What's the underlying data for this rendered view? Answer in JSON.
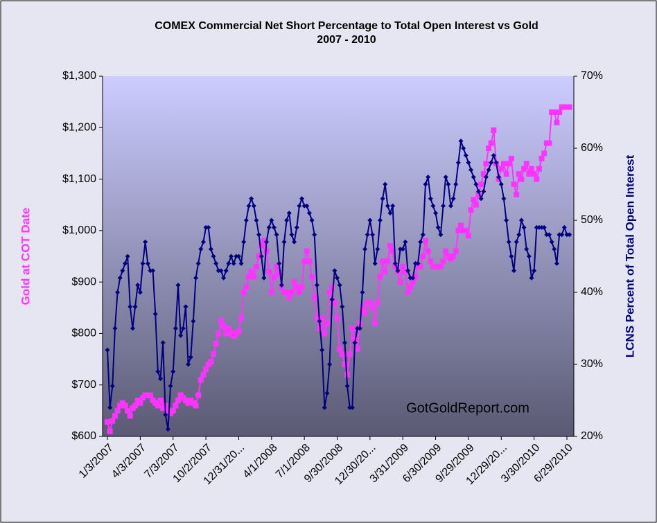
{
  "chart_data": {
    "type": "line",
    "title": "COMEX Commercial Net Short Percentage to Total Open Interest vs Gold",
    "subtitle": "2007 - 2010",
    "ylabel": "Gold at COT Date",
    "y2label": "LCNS Percent of Total Open Interest",
    "annotation": "GotGoldReport.com",
    "categories": [
      "1/3/2007",
      null,
      null,
      null,
      null,
      null,
      null,
      null,
      null,
      null,
      null,
      null,
      null,
      "4/3/2007",
      null,
      null,
      null,
      null,
      null,
      null,
      null,
      null,
      null,
      null,
      null,
      null,
      "7/3/2007",
      null,
      null,
      null,
      null,
      null,
      null,
      null,
      null,
      null,
      null,
      null,
      null,
      "10/2/2007",
      null,
      null,
      null,
      null,
      null,
      null,
      null,
      null,
      null,
      null,
      null,
      null,
      "12/31/20...",
      null,
      null,
      null,
      null,
      null,
      null,
      null,
      null,
      null,
      null,
      null,
      null,
      "4/1/2008",
      null,
      null,
      null,
      null,
      null,
      null,
      null,
      null,
      null,
      null,
      null,
      null,
      "7/1/2008",
      null,
      null,
      null,
      null,
      null,
      null,
      null,
      null,
      null,
      null,
      null,
      null,
      "9/30/2008",
      null,
      null,
      null,
      null,
      null,
      null,
      null,
      null,
      null,
      null,
      null,
      null,
      "12/30/20...",
      null,
      null,
      null,
      null,
      null,
      null,
      null,
      null,
      null,
      null,
      null,
      null,
      "3/31/2009",
      null,
      null,
      null,
      null,
      null,
      null,
      null,
      null,
      null,
      null,
      null,
      null,
      "6/30/2009",
      null,
      null,
      null,
      null,
      null,
      null,
      null,
      null,
      null,
      null,
      null,
      null,
      "9/29/2009",
      null,
      null,
      null,
      null,
      null,
      null,
      null,
      null,
      null,
      null,
      null,
      null,
      "12/29/20...",
      null,
      null,
      null,
      null,
      null,
      null,
      null,
      null,
      null,
      null,
      null,
      null,
      "3/30/2010",
      null,
      null,
      null,
      null,
      null,
      null,
      null,
      null,
      null,
      null,
      null,
      null,
      "6/29/2010",
      null
    ],
    "series": [
      {
        "name": "Gold at COT Date",
        "color": "#ff33ff",
        "marker": "square",
        "values": [
          628,
          610,
          630,
          640,
          650,
          660,
          665,
          660,
          650,
          640,
          655,
          660,
          670,
          665,
          675,
          680,
          680,
          680,
          670,
          665,
          660,
          670,
          655,
          660,
          650,
          645,
          650,
          660,
          670,
          680,
          675,
          670,
          665,
          670,
          665,
          660,
          680,
          710,
          720,
          730,
          740,
          745,
          760,
          780,
          800,
          825,
          815,
          800,
          810,
          800,
          795,
          800,
          805,
          830,
          880,
          890,
          910,
          920,
          910,
          930,
          950,
          970,
          980,
          960,
          920,
          880,
          910,
          930,
          915,
          890,
          880,
          880,
          870,
          880,
          900,
          890,
          880,
          890,
          940,
          960,
          940,
          910,
          870,
          830,
          810,
          830,
          800,
          820,
          880,
          890,
          860,
          830,
          770,
          760,
          740,
          720,
          760,
          810,
          790,
          770,
          820,
          850,
          840,
          860,
          860,
          850,
          820,
          860,
          910,
          940,
          920,
          940,
          970,
          960,
          930,
          920,
          900,
          930,
          920,
          880,
          890,
          900,
          910,
          930,
          930,
          950,
          980,
          960,
          940,
          930,
          930,
          930,
          930,
          940,
          960,
          950,
          945,
          950,
          960,
          1000,
          1010,
          1000,
          1000,
          990,
          1040,
          1060,
          1050,
          1070,
          1090,
          1110,
          1130,
          1160,
          1170,
          1195,
          1130,
          1100,
          1120,
          1130,
          1110,
          1130,
          1140,
          1090,
          1070,
          1110,
          1100,
          1120,
          1130,
          1110,
          1120,
          1110,
          1100,
          1120,
          1140,
          1150,
          1170,
          1170,
          1230,
          1230,
          1210,
          1230,
          1240,
          1240,
          1240,
          1240
        ]
      },
      {
        "name": "LCNS Percent of Total Open Interest",
        "color": "#000080",
        "marker": "diamond",
        "axis": "y2",
        "values": [
          32,
          24,
          27,
          35,
          40,
          42,
          43,
          44,
          45,
          38,
          35,
          38,
          41,
          40,
          44,
          47,
          44,
          43,
          43,
          37,
          29,
          28,
          33,
          23,
          21,
          27,
          29,
          35,
          41,
          34,
          35,
          38,
          30,
          31,
          36,
          42,
          44,
          46,
          47,
          49,
          49,
          46,
          45,
          44,
          43,
          43,
          42,
          43,
          44,
          45,
          44,
          45,
          45,
          44,
          47,
          50,
          52,
          53,
          52,
          50,
          48,
          45,
          42,
          47,
          49,
          50,
          49,
          48,
          44,
          41,
          47,
          50,
          51,
          48,
          47,
          49,
          52,
          53,
          52,
          52,
          51,
          50,
          48,
          41,
          36,
          32,
          24,
          26,
          30,
          39,
          43,
          42,
          41,
          38,
          33,
          27,
          24,
          24,
          33,
          35,
          35,
          40,
          46,
          48,
          50,
          48,
          44,
          46,
          50,
          53,
          55,
          52,
          51,
          52,
          44,
          43,
          46,
          46,
          47,
          43,
          42,
          42,
          44,
          44,
          47,
          48,
          55,
          56,
          53,
          52,
          51,
          49,
          48,
          52,
          56,
          55,
          52,
          53,
          55,
          58,
          61,
          60,
          59,
          58,
          57,
          56,
          55,
          54,
          53,
          54,
          56,
          57,
          58,
          59,
          58,
          56,
          55,
          53,
          50,
          47,
          45,
          43,
          47,
          48,
          50,
          49,
          46,
          45,
          42,
          43,
          49,
          49,
          49,
          49,
          48,
          48,
          47,
          46,
          44,
          48,
          48,
          49,
          48,
          48
        ]
      }
    ],
    "ylim": [
      600,
      1300
    ],
    "yticks": [
      {
        "value": 600,
        "label": "$600"
      },
      {
        "value": 700,
        "label": "$700"
      },
      {
        "value": 800,
        "label": "$800"
      },
      {
        "value": 900,
        "label": "$900"
      },
      {
        "value": 1000,
        "label": "$1,000"
      },
      {
        "value": 1100,
        "label": "$1,100"
      },
      {
        "value": 1200,
        "label": "$1,200"
      },
      {
        "value": 1300,
        "label": "$1,300"
      }
    ],
    "y2lim": [
      20,
      70
    ],
    "y2ticks": [
      {
        "value": 20,
        "label": "20%"
      },
      {
        "value": 30,
        "label": "30%"
      },
      {
        "value": 40,
        "label": "40%"
      },
      {
        "value": 50,
        "label": "50%"
      },
      {
        "value": 60,
        "label": "60%"
      },
      {
        "value": 70,
        "label": "70%"
      }
    ],
    "grid": false
  }
}
